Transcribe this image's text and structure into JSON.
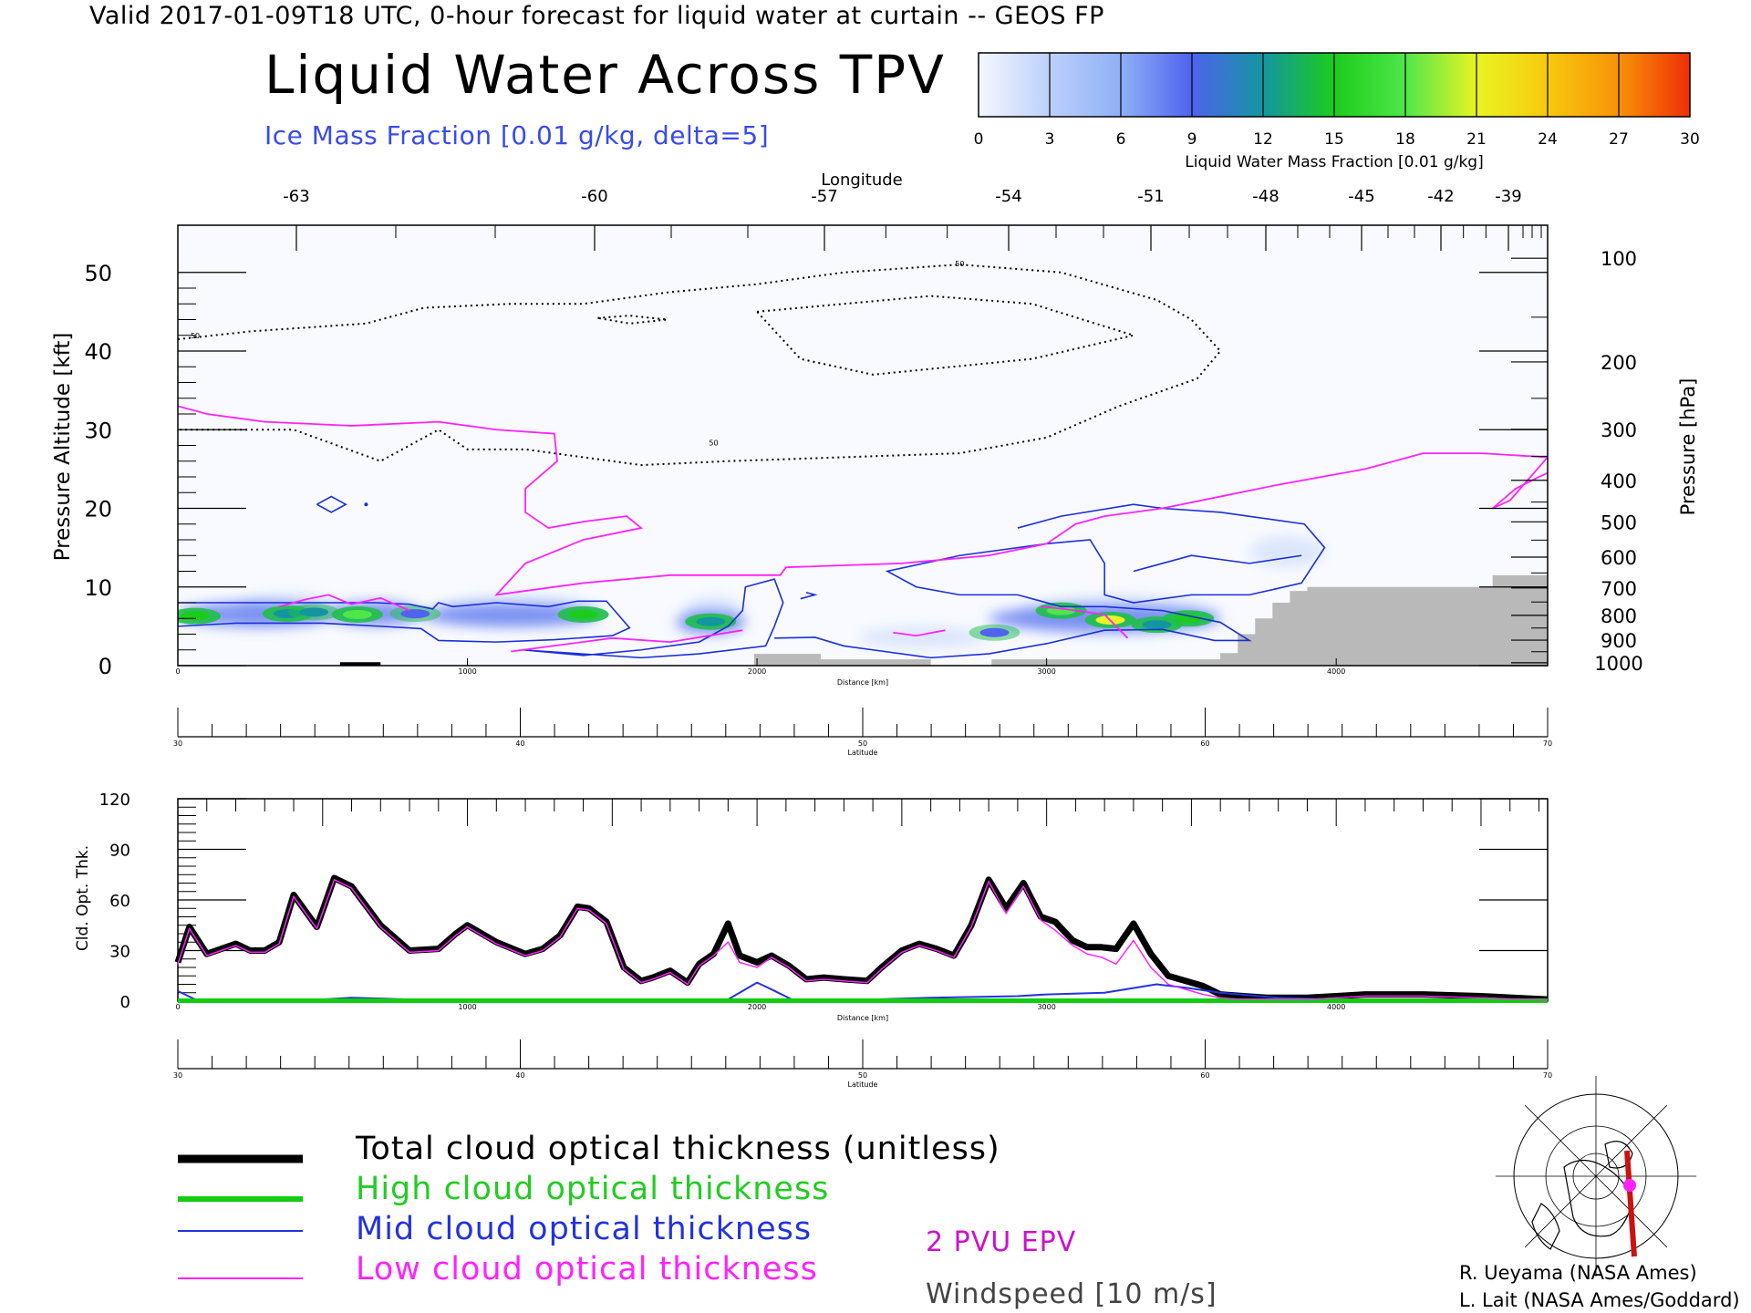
{
  "header": {
    "valid_line": "Valid 2017-01-09T18 UTC, 0-hour forecast for liquid water at curtain -- GEOS FP",
    "title": "Liquid Water Across TPV",
    "subtitle": "Ice Mass Fraction [0.01 g/kg, delta=5]"
  },
  "colorbar": {
    "ticks": [
      "0",
      "3",
      "6",
      "9",
      "12",
      "15",
      "18",
      "21",
      "24",
      "27",
      "30"
    ],
    "label": "Liquid Water Mass Fraction [0.01 g/kg]",
    "colors": [
      "#f4f7ff",
      "#bcd0fb",
      "#8fb0f6",
      "#4e63ee",
      "#1496a0",
      "#1ccc1c",
      "#4fe64a",
      "#e8f522",
      "#f7c90d",
      "#f79208",
      "#ef2f05"
    ]
  },
  "chart_data": [
    {
      "type": "heatmap",
      "title": "Liquid Water Across TPV",
      "xlabel": "Distance [km]",
      "x_ticks": [
        "0",
        "1000",
        "2000",
        "3000",
        "4000"
      ],
      "xlim": [
        0,
        4730
      ],
      "ylabel": "Pressure Altitude [kft]",
      "y_ticks": [
        "0",
        "10",
        "20",
        "30",
        "40",
        "50"
      ],
      "ylim": [
        0,
        56
      ],
      "y2label": "Pressure [hPa]",
      "y2_ticks": [
        "100",
        "200",
        "300",
        "400",
        "500",
        "600",
        "700",
        "800",
        "900",
        "1000"
      ],
      "top_axis_label": "Longitude",
      "top_ticks": [
        "-63",
        "-60",
        "-57",
        "-54",
        "-51",
        "-48",
        "-45",
        "-42",
        "-39"
      ],
      "latitude_label": "Latitude",
      "latitude_ticks": [
        "30",
        "40",
        "50",
        "60",
        "70"
      ],
      "liquid_water_blobs": [
        {
          "x": 60,
          "y": 6.3,
          "value": 14
        },
        {
          "x": 380,
          "y": 6.6,
          "value": 12
        },
        {
          "x": 470,
          "y": 6.8,
          "value": 11
        },
        {
          "x": 620,
          "y": 6.5,
          "value": 19
        },
        {
          "x": 820,
          "y": 6.6,
          "value": 9
        },
        {
          "x": 1400,
          "y": 6.5,
          "value": 15
        },
        {
          "x": 1840,
          "y": 5.6,
          "value": 13
        },
        {
          "x": 2820,
          "y": 4.2,
          "value": 10
        },
        {
          "x": 3050,
          "y": 7.0,
          "value": 17
        },
        {
          "x": 3220,
          "y": 5.8,
          "value": 20
        },
        {
          "x": 3490,
          "y": 6.0,
          "value": 15
        },
        {
          "x": 3380,
          "y": 5.2,
          "value": 12
        }
      ],
      "ice_contour_label": "50",
      "epv_label": "2 PVU EPV"
    },
    {
      "type": "line",
      "xlabel": "Distance [km]",
      "x_ticks": [
        "0",
        "1000",
        "2000",
        "3000",
        "4000"
      ],
      "xlim": [
        0,
        4730
      ],
      "ylabel": "Cld. Opt. Thk.",
      "y_ticks": [
        "0",
        "30",
        "60",
        "90",
        "120"
      ],
      "ylim": [
        0,
        120
      ],
      "latitude_label": "Latitude",
      "latitude_ticks": [
        "30",
        "40",
        "50",
        "60",
        "70"
      ],
      "series": [
        {
          "name": "Total cloud optical thickness (unitless)",
          "color": "#000000",
          "x": [
            0,
            40,
            100,
            200,
            250,
            300,
            350,
            400,
            480,
            540,
            600,
            700,
            800,
            900,
            960,
            1000,
            1100,
            1200,
            1260,
            1320,
            1380,
            1420,
            1480,
            1540,
            1600,
            1640,
            1700,
            1760,
            1800,
            1850,
            1900,
            1940,
            2000,
            2050,
            2110,
            2170,
            2230,
            2300,
            2380,
            2430,
            2500,
            2560,
            2620,
            2680,
            2740,
            2800,
            2860,
            2920,
            2980,
            3030,
            3090,
            3140,
            3190,
            3240,
            3300,
            3360,
            3420,
            3480,
            3540,
            3600,
            3680,
            3760,
            3800,
            3900,
            4000,
            4100,
            4300,
            4500,
            4730
          ],
          "y": [
            23,
            44,
            28,
            34,
            30,
            30,
            35,
            63,
            44,
            73,
            68,
            45,
            30,
            31,
            40,
            45,
            35,
            28,
            31,
            39,
            56,
            55,
            47,
            20,
            12,
            14,
            18,
            11,
            22,
            28,
            46,
            27,
            23,
            27,
            21,
            13,
            14,
            13,
            12,
            20,
            30,
            34,
            31,
            27,
            45,
            72,
            55,
            70,
            50,
            47,
            36,
            32,
            32,
            31,
            46,
            28,
            15,
            12,
            9,
            4,
            3,
            2,
            2,
            2,
            3,
            4,
            4,
            3,
            1
          ]
        },
        {
          "name": "High cloud optical thickness",
          "color": "#11cc11",
          "x": [
            0,
            4730
          ],
          "y": [
            0.3,
            0.3
          ]
        },
        {
          "name": "Mid cloud optical thickness",
          "color": "#2233dd",
          "x": [
            0,
            60,
            120,
            300,
            500,
            600,
            800,
            1200,
            1600,
            1900,
            2000,
            2050,
            2120,
            2300,
            2600,
            2900,
            3000,
            3200,
            3380,
            3480,
            3600,
            3800,
            4000,
            4730
          ],
          "y": [
            6,
            1,
            0.5,
            0.5,
            1,
            2,
            1,
            0.5,
            0.5,
            1,
            11,
            7,
            1,
            0.5,
            2,
            3,
            4,
            5,
            10,
            8,
            5,
            2,
            1,
            0.5
          ]
        },
        {
          "name": "Low cloud optical thickness",
          "color": "#ff22ff",
          "x": [
            0,
            40,
            100,
            200,
            250,
            300,
            350,
            400,
            480,
            540,
            600,
            700,
            800,
            900,
            960,
            1000,
            1100,
            1200,
            1260,
            1320,
            1380,
            1420,
            1480,
            1540,
            1600,
            1640,
            1700,
            1760,
            1800,
            1850,
            1900,
            1940,
            2000,
            2050,
            2110,
            2170,
            2230,
            2300,
            2380,
            2430,
            2500,
            2560,
            2620,
            2680,
            2740,
            2800,
            2860,
            2920,
            2980,
            3030,
            3090,
            3140,
            3190,
            3240,
            3300,
            3360,
            3420,
            3480,
            3540,
            3600,
            3680,
            3760,
            3800,
            3900,
            4000,
            4100,
            4300,
            4500,
            4730
          ],
          "y": [
            22,
            43,
            27,
            33,
            29,
            29,
            34,
            62,
            43,
            72,
            67,
            44,
            29,
            30,
            39,
            44,
            34,
            27,
            30,
            38,
            55,
            54,
            46,
            19,
            11,
            13,
            17,
            10,
            21,
            27,
            35,
            23,
            20,
            26,
            20,
            12,
            13,
            12,
            11,
            19,
            29,
            33,
            30,
            26,
            44,
            71,
            52,
            68,
            48,
            42,
            33,
            28,
            26,
            22,
            36,
            20,
            10,
            7,
            4,
            2,
            1,
            1,
            1,
            1,
            2,
            3,
            3,
            2,
            0.5
          ]
        }
      ]
    }
  ],
  "legend": {
    "items": [
      {
        "label": "Total cloud optical thickness (unitless)",
        "color": "#000000",
        "text_color": "#000000"
      },
      {
        "label": "High cloud optical thickness",
        "color": "#11cc11",
        "text_color": "#22cc22"
      },
      {
        "label": "Mid cloud optical thickness",
        "color": "#2233dd",
        "text_color": "#2233dd"
      },
      {
        "label": "Low cloud optical thickness",
        "color": "#ff22ff",
        "text_color": "#ff22ff"
      }
    ],
    "epv_label": "2 PVU EPV",
    "windspeed_label": "Windspeed [10 m/s]"
  },
  "credits": {
    "line1": "R. Ueyama (NASA Ames)",
    "line2": "L. Lait (NASA Ames/Goddard)"
  }
}
